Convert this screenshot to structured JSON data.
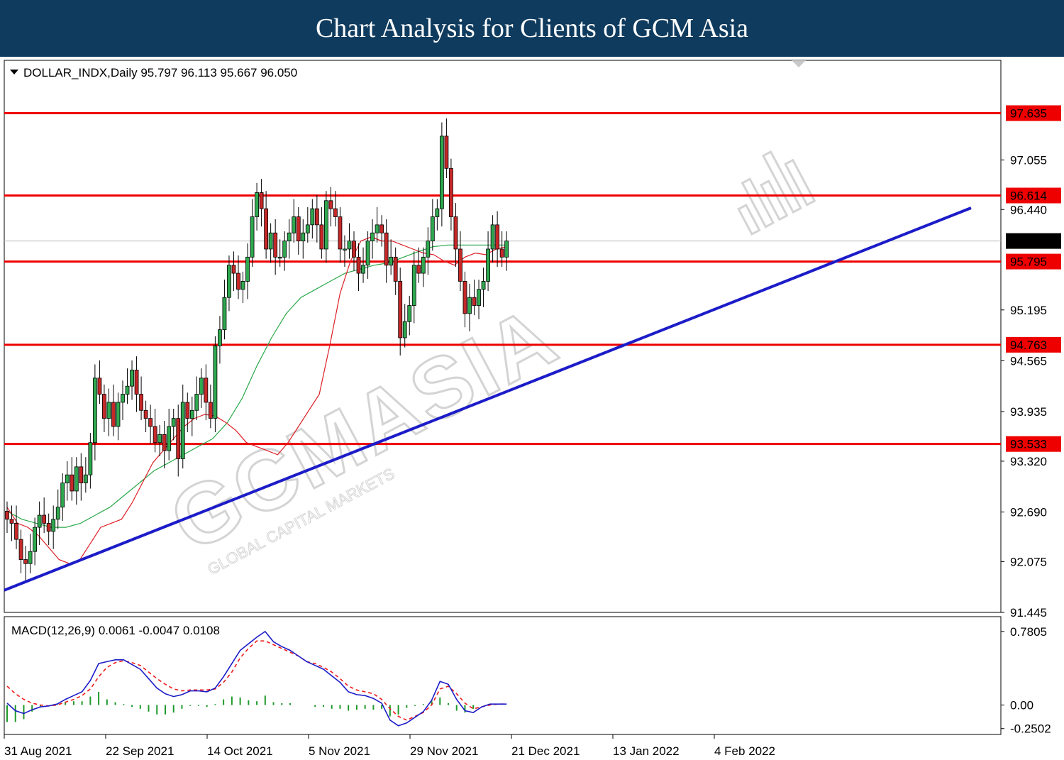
{
  "banner": {
    "title": "Chart Analysis for Clients of GCM Asia"
  },
  "chart_data": {
    "type": "candlestick",
    "symbol_line": "DOLLAR_INDX,Daily  95.797 96.113 95.667 96.050",
    "watermark": {
      "brand": "GCMASIA",
      "tagline": "GLOBAL CAPITAL MARKETS"
    },
    "price_axis": {
      "ylim": [
        91.445,
        98.29
      ],
      "ticks": [
        "97.055",
        "96.440",
        "95.195",
        "94.565",
        "93.935",
        "93.320",
        "92.690",
        "92.075",
        "91.445"
      ]
    },
    "current_price": {
      "label": "96.050",
      "value": 96.05
    },
    "horizontal_levels": [
      {
        "label": "97.635",
        "value": 97.635
      },
      {
        "label": "96.614",
        "value": 96.614
      },
      {
        "label": "95.795",
        "value": 95.795
      },
      {
        "label": "94.763",
        "value": 94.763
      },
      {
        "label": "93.533",
        "value": 93.533
      }
    ],
    "x_labels": [
      "31 Aug 2021",
      "22 Sep 2021",
      "14 Oct 2021",
      "5 Nov 2021",
      "29 Nov 2021",
      "21 Dec 2021",
      "13 Jan 2022",
      "4 Feb 2022"
    ],
    "candles_close": [
      92.6,
      92.55,
      92.35,
      92.1,
      92.05,
      92.2,
      92.5,
      92.65,
      92.55,
      92.45,
      92.6,
      92.75,
      93.05,
      93.15,
      92.95,
      93.25,
      93.05,
      93.15,
      93.55,
      94.35,
      94.15,
      93.85,
      94.05,
      93.75,
      94.05,
      94.15,
      94.25,
      94.45,
      94.15,
      93.95,
      93.85,
      93.75,
      93.55,
      93.65,
      93.45,
      93.75,
      93.85,
      93.35,
      94.05,
      93.85,
      93.95,
      94.15,
      94.35,
      94.05,
      93.85,
      94.75,
      94.95,
      95.35,
      95.75,
      95.65,
      95.45,
      95.55,
      95.85,
      96.35,
      96.65,
      96.45,
      95.95,
      96.15,
      95.85,
      95.85,
      96.05,
      96.15,
      96.35,
      96.05,
      96.15,
      96.25,
      96.45,
      96.25,
      95.95,
      96.55,
      96.45,
      96.35,
      95.95,
      95.95,
      96.05,
      95.85,
      95.65,
      95.75,
      96.05,
      96.15,
      96.25,
      96.15,
      95.75,
      95.85,
      95.55,
      94.85,
      95.05,
      95.25,
      95.75,
      95.65,
      95.85,
      96.05,
      96.35,
      96.45,
      97.35,
      96.95,
      96.35,
      95.95,
      95.55,
      95.15,
      95.35,
      95.25,
      95.45,
      95.55,
      95.95,
      96.25,
      95.95,
      95.85,
      96.05
    ],
    "sma_short": {
      "color": "#dd1f26",
      "values": [
        92.75,
        92.55,
        92.5,
        92.4,
        92.25,
        92.1,
        92.05,
        92.1,
        92.3,
        92.5,
        92.55,
        92.6,
        92.8,
        93.05,
        93.3,
        93.45,
        93.6,
        93.75,
        93.85,
        93.9,
        93.88,
        93.8,
        93.7,
        93.55,
        93.5,
        93.45,
        93.4,
        93.55,
        93.75,
        93.95,
        94.15,
        94.75,
        95.4,
        95.8,
        96.05,
        96.1,
        96.05,
        96.05,
        96.0,
        95.95,
        95.9,
        95.88,
        95.8,
        95.75,
        95.85,
        95.9,
        95.88,
        95.95,
        95.98
      ]
    },
    "sma_long": {
      "color": "#2aa84a",
      "values": [
        92.7,
        92.6,
        92.55,
        92.5,
        92.5,
        92.55,
        92.65,
        92.75,
        92.9,
        93.05,
        93.2,
        93.3,
        93.4,
        93.5,
        93.6,
        93.8,
        94.1,
        94.5,
        94.85,
        95.15,
        95.35,
        95.45,
        95.55,
        95.65,
        95.7,
        95.75,
        95.78,
        95.85,
        95.92,
        95.98,
        96.0,
        96.0,
        96.0,
        96.0,
        96.0
      ]
    },
    "trendline": {
      "color": "#1c1cc8",
      "from": {
        "date": "31 Aug 2021",
        "value": 91.72
      },
      "to_value": 96.46
    },
    "macd": {
      "label": "MACD(12,26,9) 0.0061 -0.0047 0.0108",
      "ylim": [
        -0.35,
        0.9
      ],
      "ticks": [
        "0.7805",
        "0.00",
        "-0.2502"
      ],
      "macd_line_color": "#1c1cc8",
      "signal_line_color": "#ee1c1c",
      "histogram_color": "#1e9a2a",
      "macd_line": [
        0.02,
        -0.06,
        -0.09,
        -0.05,
        -0.02,
        -0.01,
        0.01,
        0.06,
        0.1,
        0.14,
        0.26,
        0.44,
        0.46,
        0.48,
        0.48,
        0.43,
        0.38,
        0.28,
        0.18,
        0.12,
        0.09,
        0.11,
        0.15,
        0.15,
        0.14,
        0.18,
        0.3,
        0.44,
        0.58,
        0.65,
        0.72,
        0.78,
        0.67,
        0.62,
        0.58,
        0.52,
        0.46,
        0.42,
        0.38,
        0.31,
        0.24,
        0.14,
        0.11,
        0.1,
        0.07,
        0.02,
        -0.16,
        -0.22,
        -0.19,
        -0.13,
        -0.07,
        0.05,
        0.25,
        0.22,
        0.06,
        -0.06,
        -0.08,
        -0.02,
        0.01,
        0.01,
        0.01
      ],
      "signal_line": [
        0.2,
        0.12,
        0.06,
        0.02,
        0.0,
        -0.01,
        0.0,
        0.03,
        0.06,
        0.1,
        0.17,
        0.3,
        0.4,
        0.45,
        0.47,
        0.45,
        0.42,
        0.35,
        0.28,
        0.22,
        0.17,
        0.15,
        0.16,
        0.16,
        0.16,
        0.17,
        0.24,
        0.35,
        0.5,
        0.6,
        0.68,
        0.68,
        0.64,
        0.6,
        0.56,
        0.52,
        0.46,
        0.44,
        0.4,
        0.35,
        0.28,
        0.2,
        0.16,
        0.14,
        0.12,
        0.06,
        -0.04,
        -0.12,
        -0.16,
        -0.12,
        -0.08,
        0.0,
        0.17,
        0.2,
        0.12,
        0.02,
        -0.04,
        -0.02,
        0.0,
        0.01,
        0.01
      ]
    }
  }
}
